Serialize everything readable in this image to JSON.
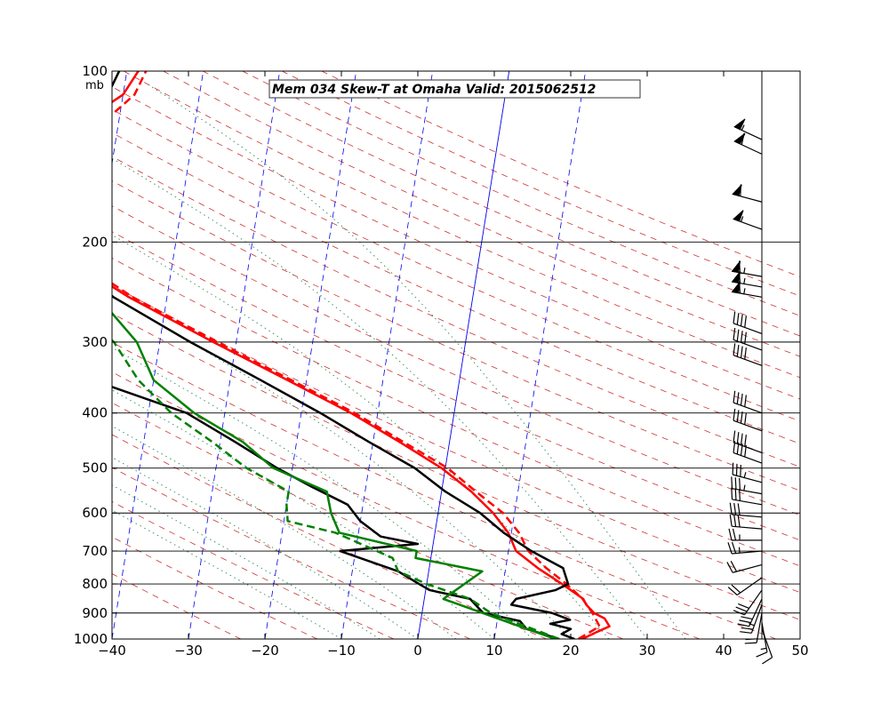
{
  "chart_data": {
    "type": "line",
    "title": "Mem 034  Skew-T at Omaha   Valid: 2015062512",
    "pressure_unit": "mb",
    "xlim": [
      -40,
      50
    ],
    "plim": [
      100,
      1000
    ],
    "x_ticks": [
      -40,
      -30,
      -20,
      -10,
      0,
      10,
      20,
      30,
      40,
      50
    ],
    "x_tick_labels": [
      "−40",
      "−30",
      "−20",
      "−10",
      "0",
      "10",
      "20",
      "30",
      "40",
      "50"
    ],
    "pressure_ticks": [
      100,
      200,
      300,
      400,
      500,
      600,
      700,
      800,
      900,
      1000
    ],
    "pressure_tick_labels": [
      "100",
      "200",
      "300",
      "400",
      "500",
      "600",
      "700",
      "800",
      "900",
      "1000"
    ],
    "horizontal_grid": [
      200,
      300,
      400,
      500,
      600,
      700,
      800,
      900
    ],
    "wind_axis_x": 45,
    "colors": {
      "temperature": "#ff0000",
      "dewpoint": "#008000",
      "sounding": "#000000",
      "dry_adiabat": "#cc3333",
      "isotherm": "#0000ee",
      "moist_adiabat": "#2e8b57",
      "grid": "#000000"
    },
    "isotherms_temperature": [
      -100,
      -90,
      -80,
      -70,
      -60,
      -50,
      -40,
      -30,
      -20,
      -10,
      10
    ],
    "zero_isotherm": 0,
    "dry_adiabats_theta": [
      250,
      260,
      270,
      280,
      290,
      300,
      310,
      320,
      330,
      340,
      350,
      360,
      370,
      380,
      390,
      400,
      410,
      420,
      430,
      440,
      450,
      460,
      470,
      480
    ],
    "moist_adiabat_offsets": [
      -10,
      -5,
      0,
      5,
      10,
      15,
      20,
      25,
      30,
      35
    ],
    "series": [
      {
        "role": "temperature-solid",
        "color": "#ff0000",
        "dash": false,
        "points": [
          {
            "p": 1000,
            "t": 21.5
          },
          {
            "p": 970,
            "t": 23.4
          },
          {
            "p": 950,
            "t": 24.8
          },
          {
            "p": 920,
            "t": 24.0
          },
          {
            "p": 900,
            "t": 22.5
          },
          {
            "p": 870,
            "t": 21.3
          },
          {
            "p": 850,
            "t": 20.8
          },
          {
            "p": 800,
            "t": 17.7
          },
          {
            "p": 750,
            "t": 14.2
          },
          {
            "p": 700,
            "t": 11.0
          },
          {
            "p": 650,
            "t": 9.6
          },
          {
            "p": 600,
            "t": 7.2
          },
          {
            "p": 550,
            "t": 3.9
          },
          {
            "p": 500,
            "t": -0.5
          },
          {
            "p": 450,
            "t": -6.5
          },
          {
            "p": 400,
            "t": -13.5
          },
          {
            "p": 350,
            "t": -22.5
          },
          {
            "p": 300,
            "t": -33.0
          },
          {
            "p": 250,
            "t": -45.0
          },
          {
            "p": 200,
            "t": -57.5
          },
          {
            "p": 180,
            "t": -61.0
          },
          {
            "p": 150,
            "t": -58.5
          },
          {
            "p": 125,
            "t": -55.5
          },
          {
            "p": 110,
            "t": -50.0
          },
          {
            "p": 100,
            "t": -48.5
          }
        ]
      },
      {
        "role": "temperature-dashed",
        "color": "#ff0000",
        "dash": true,
        "points": [
          {
            "p": 1000,
            "t": 21.0
          },
          {
            "p": 950,
            "t": 23.5
          },
          {
            "p": 900,
            "t": 22.3
          },
          {
            "p": 850,
            "t": 20.7
          },
          {
            "p": 800,
            "t": 18.3
          },
          {
            "p": 750,
            "t": 15.3
          },
          {
            "p": 700,
            "t": 12.6
          },
          {
            "p": 650,
            "t": 11.0
          },
          {
            "p": 600,
            "t": 8.5
          },
          {
            "p": 550,
            "t": 4.5
          },
          {
            "p": 500,
            "t": 0.3
          },
          {
            "p": 450,
            "t": -6.0
          },
          {
            "p": 400,
            "t": -13.0
          },
          {
            "p": 350,
            "t": -22.0
          },
          {
            "p": 300,
            "t": -32.5
          },
          {
            "p": 250,
            "t": -44.5
          },
          {
            "p": 200,
            "t": -56.5
          },
          {
            "p": 180,
            "t": -59.5
          },
          {
            "p": 150,
            "t": -56.5
          },
          {
            "p": 125,
            "t": -52.5
          },
          {
            "p": 110,
            "t": -48.5
          },
          {
            "p": 100,
            "t": -47.5
          }
        ]
      },
      {
        "role": "sounding-temperature",
        "color": "#000000",
        "dash": false,
        "points": [
          {
            "p": 1000,
            "t": 20.5
          },
          {
            "p": 980,
            "t": 18.7
          },
          {
            "p": 960,
            "t": 19.8
          },
          {
            "p": 940,
            "t": 17.0
          },
          {
            "p": 925,
            "t": 19.5
          },
          {
            "p": 900,
            "t": 17.0
          },
          {
            "p": 870,
            "t": 11.5
          },
          {
            "p": 850,
            "t": 12.0
          },
          {
            "p": 820,
            "t": 17.0
          },
          {
            "p": 800,
            "t": 18.5
          },
          {
            "p": 750,
            "t": 17.5
          },
          {
            "p": 700,
            "t": 13.0
          },
          {
            "p": 650,
            "t": 9.0
          },
          {
            "p": 600,
            "t": 5.5
          },
          {
            "p": 550,
            "t": 0.5
          },
          {
            "p": 500,
            "t": -4.0
          },
          {
            "p": 450,
            "t": -10.5
          },
          {
            "p": 400,
            "t": -17.5
          },
          {
            "p": 350,
            "t": -26.0
          },
          {
            "p": 300,
            "t": -36.0
          },
          {
            "p": 250,
            "t": -47.0
          },
          {
            "p": 200,
            "t": -57.0
          },
          {
            "p": 175,
            "t": -60.0
          },
          {
            "p": 150,
            "t": -58.0
          },
          {
            "p": 125,
            "t": -55.5
          },
          {
            "p": 110,
            "t": -52.0
          },
          {
            "p": 100,
            "t": -51.0
          }
        ]
      },
      {
        "role": "sounding-dewpoint",
        "color": "#000000",
        "dash": false,
        "points": [
          {
            "p": 1000,
            "t": 18.5
          },
          {
            "p": 960,
            "t": 14.0
          },
          {
            "p": 930,
            "t": 13.0
          },
          {
            "p": 900,
            "t": 8.0
          },
          {
            "p": 850,
            "t": 6.0
          },
          {
            "p": 820,
            "t": 0.5
          },
          {
            "p": 800,
            "t": -1.0
          },
          {
            "p": 760,
            "t": -4.0
          },
          {
            "p": 700,
            "t": -12.0
          },
          {
            "p": 680,
            "t": -2.0
          },
          {
            "p": 660,
            "t": -7.0
          },
          {
            "p": 620,
            "t": -10.0
          },
          {
            "p": 580,
            "t": -12.0
          },
          {
            "p": 540,
            "t": -17.0
          },
          {
            "p": 500,
            "t": -22.0
          },
          {
            "p": 450,
            "t": -28.0
          },
          {
            "p": 400,
            "t": -35.0
          },
          {
            "p": 350,
            "t": -48.0
          },
          {
            "p": 320,
            "t": -52.0
          },
          {
            "p": 300,
            "t": -56.0
          },
          {
            "p": 250,
            "t": -60.0
          },
          {
            "p": 200,
            "t": -68.0
          },
          {
            "p": 180,
            "t": -74.0
          },
          {
            "p": 160,
            "t": -77.0
          },
          {
            "p": 150,
            "t": -80.0
          },
          {
            "p": 130,
            "t": -80.0
          },
          {
            "p": 110,
            "t": -80.0
          },
          {
            "p": 100,
            "t": -82.0
          }
        ]
      },
      {
        "role": "dewpoint-solid",
        "color": "#008000",
        "dash": false,
        "points": [
          {
            "p": 1000,
            "t": 18.0
          },
          {
            "p": 920,
            "t": 10.0
          },
          {
            "p": 850,
            "t": 2.5
          },
          {
            "p": 760,
            "t": 7.0
          },
          {
            "p": 720,
            "t": -2.0
          },
          {
            "p": 700,
            "t": -2.0
          },
          {
            "p": 650,
            "t": -12.5
          },
          {
            "p": 600,
            "t": -14.0
          },
          {
            "p": 550,
            "t": -15.0
          },
          {
            "p": 500,
            "t": -22.5
          },
          {
            "p": 450,
            "t": -27.0
          },
          {
            "p": 400,
            "t": -34.0
          },
          {
            "p": 350,
            "t": -40.0
          },
          {
            "p": 300,
            "t": -43.0
          },
          {
            "p": 250,
            "t": -49.0
          },
          {
            "p": 200,
            "t": -60.0
          },
          {
            "p": 175,
            "t": -68.0
          },
          {
            "p": 150,
            "t": -74.0
          },
          {
            "p": 125,
            "t": -83.0
          },
          {
            "p": 115,
            "t": -86.0
          },
          {
            "p": 100,
            "t": -77.0
          }
        ]
      },
      {
        "role": "dewpoint-dashed",
        "color": "#008000",
        "dash": true,
        "points": [
          {
            "p": 1000,
            "t": 18.5
          },
          {
            "p": 900,
            "t": 9.0
          },
          {
            "p": 850,
            "t": 6.0
          },
          {
            "p": 800,
            "t": 0.0
          },
          {
            "p": 760,
            "t": -4.0
          },
          {
            "p": 720,
            "t": -5.0
          },
          {
            "p": 650,
            "t": -13.0
          },
          {
            "p": 620,
            "t": -19.5
          },
          {
            "p": 580,
            "t": -20.0
          },
          {
            "p": 550,
            "t": -20.0
          },
          {
            "p": 500,
            "t": -26.0
          },
          {
            "p": 450,
            "t": -31.0
          },
          {
            "p": 400,
            "t": -37.0
          },
          {
            "p": 350,
            "t": -42.0
          },
          {
            "p": 300,
            "t": -46.0
          },
          {
            "p": 250,
            "t": -53.0
          },
          {
            "p": 200,
            "t": -63.0
          },
          {
            "p": 175,
            "t": -70.0
          },
          {
            "p": 150,
            "t": -75.0
          },
          {
            "p": 125,
            "t": -80.0
          },
          {
            "p": 115,
            "t": -83.0
          },
          {
            "p": 100,
            "t": -78.0
          }
        ]
      }
    ],
    "wind_barbs": [
      {
        "p": 960,
        "dir_deg": 160,
        "speed_kt": 10
      },
      {
        "p": 935,
        "dir_deg": 170,
        "speed_kt": 15
      },
      {
        "p": 900,
        "dir_deg": 190,
        "speed_kt": 20
      },
      {
        "p": 870,
        "dir_deg": 200,
        "speed_kt": 25
      },
      {
        "p": 850,
        "dir_deg": 205,
        "speed_kt": 30
      },
      {
        "p": 820,
        "dir_deg": 215,
        "speed_kt": 30
      },
      {
        "p": 780,
        "dir_deg": 235,
        "speed_kt": 20
      },
      {
        "p": 740,
        "dir_deg": 255,
        "speed_kt": 20
      },
      {
        "p": 700,
        "dir_deg": 265,
        "speed_kt": 25
      },
      {
        "p": 670,
        "dir_deg": 270,
        "speed_kt": 25
      },
      {
        "p": 640,
        "dir_deg": 275,
        "speed_kt": 30
      },
      {
        "p": 610,
        "dir_deg": 275,
        "speed_kt": 30
      },
      {
        "p": 580,
        "dir_deg": 280,
        "speed_kt": 30
      },
      {
        "p": 555,
        "dir_deg": 280,
        "speed_kt": 35
      },
      {
        "p": 530,
        "dir_deg": 285,
        "speed_kt": 35
      },
      {
        "p": 490,
        "dir_deg": 290,
        "speed_kt": 40
      },
      {
        "p": 470,
        "dir_deg": 290,
        "speed_kt": 40
      },
      {
        "p": 430,
        "dir_deg": 290,
        "speed_kt": 40
      },
      {
        "p": 400,
        "dir_deg": 290,
        "speed_kt": 40
      },
      {
        "p": 330,
        "dir_deg": 290,
        "speed_kt": 40
      },
      {
        "p": 310,
        "dir_deg": 290,
        "speed_kt": 40
      },
      {
        "p": 290,
        "dir_deg": 290,
        "speed_kt": 40
      },
      {
        "p": 250,
        "dir_deg": 280,
        "speed_kt": 65
      },
      {
        "p": 240,
        "dir_deg": 280,
        "speed_kt": 65
      },
      {
        "p": 230,
        "dir_deg": 280,
        "speed_kt": 65
      },
      {
        "p": 190,
        "dir_deg": 290,
        "speed_kt": 55
      },
      {
        "p": 170,
        "dir_deg": 285,
        "speed_kt": 60
      },
      {
        "p": 140,
        "dir_deg": 295,
        "speed_kt": 60
      },
      {
        "p": 132,
        "dir_deg": 295,
        "speed_kt": 55
      }
    ]
  }
}
